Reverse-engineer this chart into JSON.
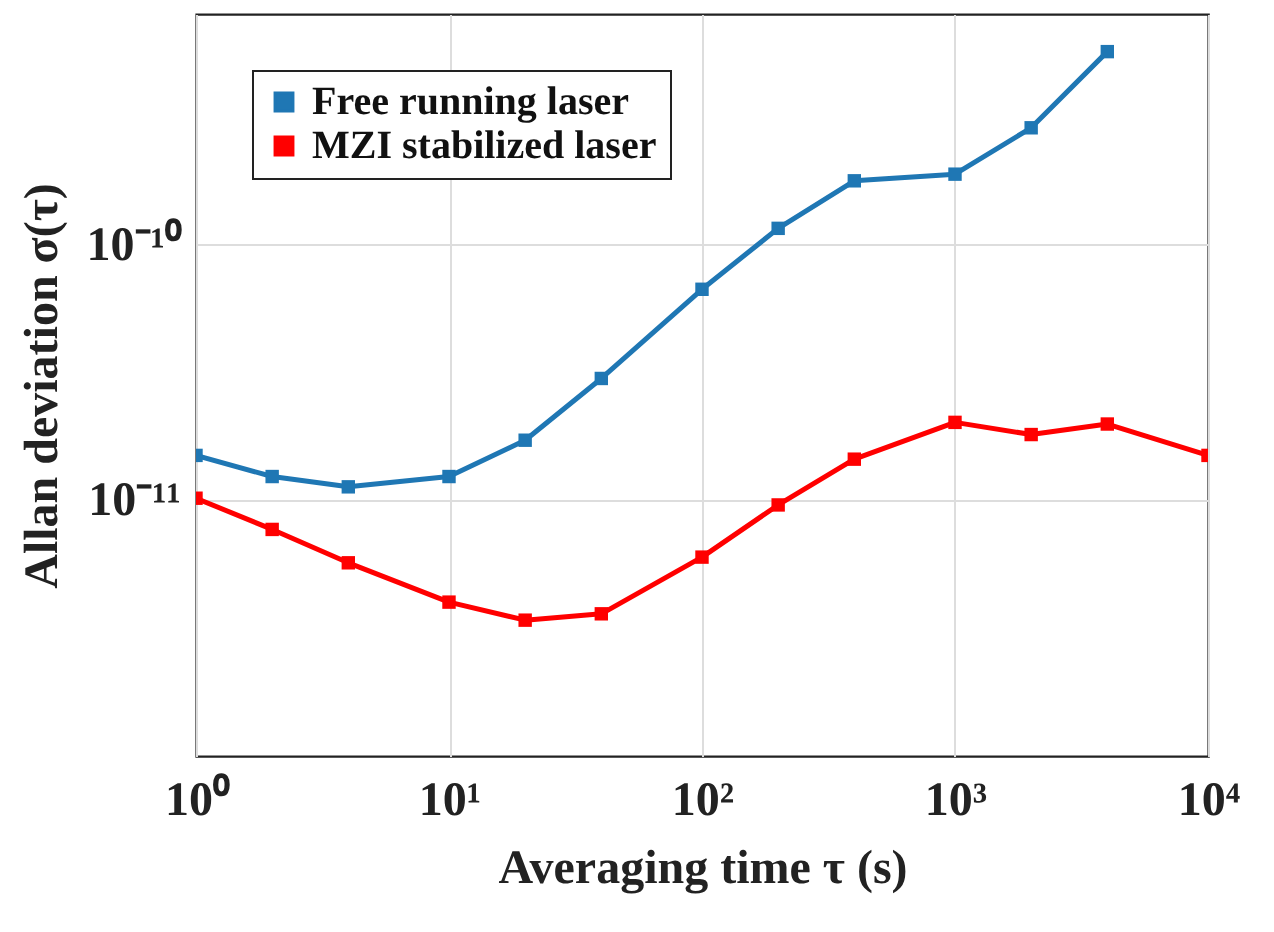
{
  "chart_data": {
    "type": "line",
    "xlabel": "Averaging time τ (s)",
    "ylabel": "Allan deviation σ(τ)",
    "log": "xy",
    "grid": true,
    "legend": "top left",
    "marker": "square",
    "line_style": "solid",
    "xlim": [
      1,
      10000
    ],
    "xticks": [
      {
        "value": 1,
        "label": "10⁰"
      },
      {
        "value": 10,
        "label": "10¹"
      },
      {
        "value": 100,
        "label": "10²"
      },
      {
        "value": 1000,
        "label": "10³"
      },
      {
        "value": 10000,
        "label": "10⁴"
      }
    ],
    "ylim": [
      1e-12,
      8e-10
    ],
    "yticks": [
      {
        "value": 1e-11,
        "label": "10⁻¹¹"
      },
      {
        "value": 1e-10,
        "label": "10⁻¹⁰"
      }
    ],
    "series": [
      {
        "name": "Free running laser",
        "color": "#1f77b4",
        "x": [
          1,
          2,
          4,
          10,
          20,
          40,
          100,
          200,
          400,
          1000,
          2000,
          4000
        ],
        "values": [
          1.5e-11,
          1.24e-11,
          1.13e-11,
          1.24e-11,
          1.72e-11,
          3e-11,
          6.7e-11,
          1.16e-10,
          1.78e-10,
          1.89e-10,
          2.87e-10,
          5.7e-10
        ]
      },
      {
        "name": "MZI stabilized laser",
        "color": "#ff0000",
        "x": [
          1,
          2,
          4,
          10,
          20,
          40,
          100,
          200,
          400,
          1000,
          2000,
          4000,
          10000
        ],
        "values": [
          1.02e-11,
          7.7e-12,
          5.7e-12,
          4e-12,
          3.4e-12,
          3.6e-12,
          6e-12,
          9.6e-12,
          1.45e-11,
          2.02e-11,
          1.81e-11,
          1.99e-11,
          1.5e-11
        ]
      }
    ]
  }
}
